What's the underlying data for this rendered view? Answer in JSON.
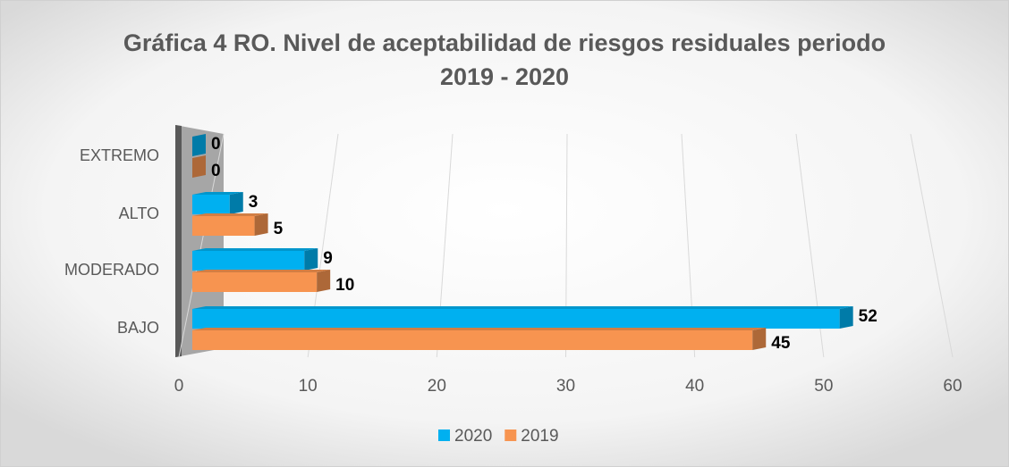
{
  "chart_data": {
    "type": "bar",
    "orientation": "horizontal",
    "title": [
      "Gráfica 4 RO. Nivel de aceptabilidad de riesgos residuales periodo",
      "2019 - 2020"
    ],
    "categories": [
      "EXTREMO",
      "ALTO",
      "MODERADO",
      "BAJO"
    ],
    "series": [
      {
        "name": "2020",
        "color": "#00b0f0",
        "values": [
          0,
          3,
          9,
          52
        ]
      },
      {
        "name": "2019",
        "color": "#f79450",
        "values": [
          0,
          5,
          10,
          45
        ]
      }
    ],
    "xlim": [
      0,
      60
    ],
    "xticks": [
      0,
      10,
      20,
      30,
      40,
      50,
      60
    ],
    "grid": true,
    "legend": "bottom"
  }
}
